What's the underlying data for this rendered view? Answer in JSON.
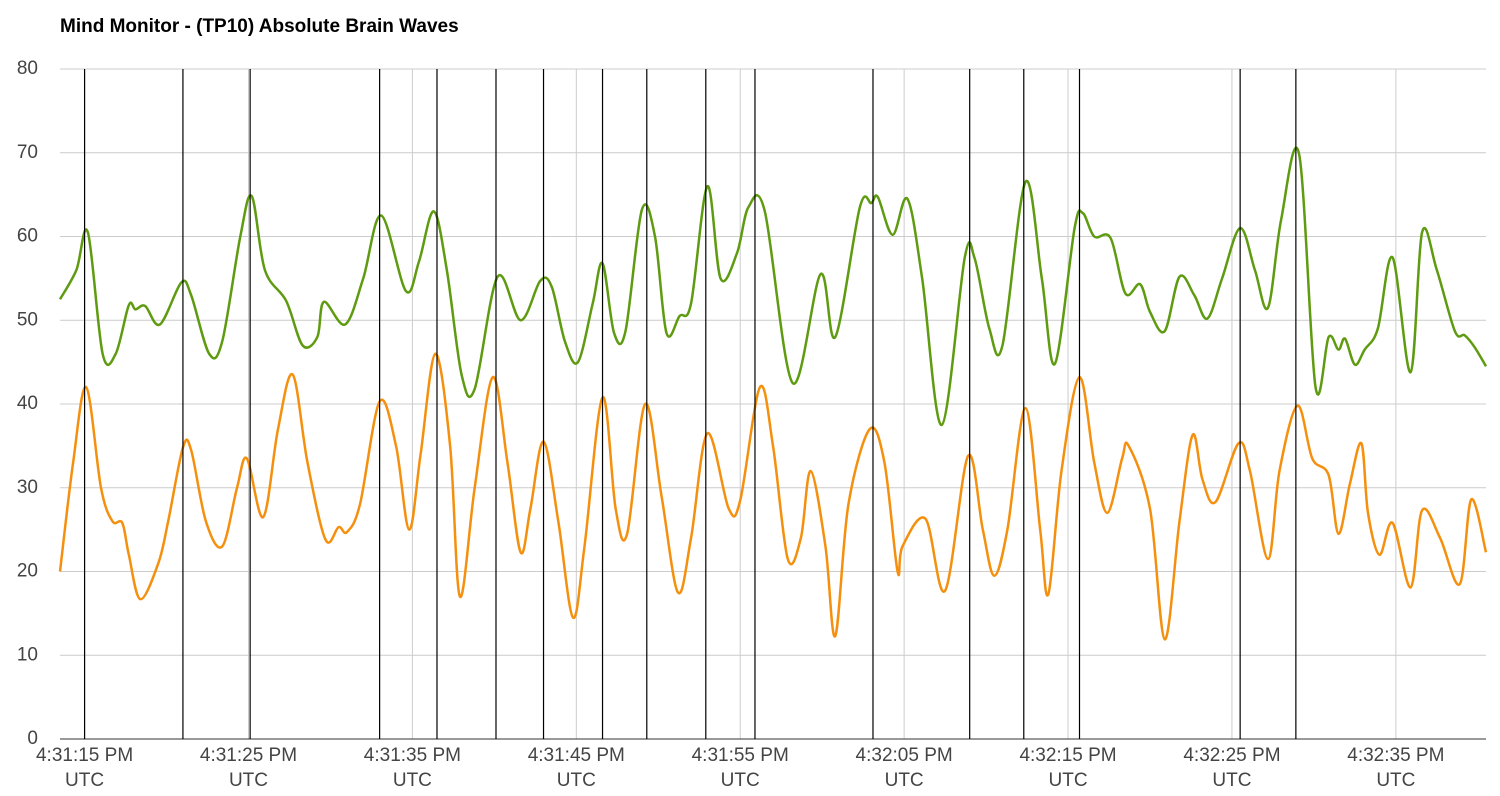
{
  "chart_data": {
    "type": "line",
    "title": "Mind Monitor - (TP10) Absolute Brain Waves",
    "xlim": [
      59473.5,
      59560.5
    ],
    "xticks": [
      {
        "value": 59475,
        "label": "4:31:15 PM UTC"
      },
      {
        "value": 59485,
        "label": "4:31:25 PM UTC"
      },
      {
        "value": 59495,
        "label": "4:31:35 PM UTC"
      },
      {
        "value": 59505,
        "label": "4:31:45 PM UTC"
      },
      {
        "value": 59515,
        "label": "4:31:55 PM UTC"
      },
      {
        "value": 59525,
        "label": "4:32:05 PM UTC"
      },
      {
        "value": 59535,
        "label": "4:32:15 PM UTC"
      },
      {
        "value": 59545,
        "label": "4:32:25 PM UTC"
      },
      {
        "value": 59555,
        "label": "4:32:35 PM UTC"
      }
    ],
    "ylim": [
      0,
      80
    ],
    "yticks": [
      0,
      10,
      20,
      30,
      40,
      50,
      60,
      70,
      80
    ],
    "grid": true,
    "markers": [
      59475.0,
      59481.0,
      59485.1,
      59493.0,
      59496.5,
      59500.1,
      59503.0,
      59506.6,
      59509.3,
      59512.9,
      59515.9,
      59523.1,
      59529.0,
      59532.3,
      59535.7,
      59545.5,
      59548.9
    ],
    "marker_color": "#000000",
    "series": [
      {
        "color": "#5f9b10",
        "x": [
          59473.5,
          59474.5,
          59475.2,
          59476.1,
          59476.9,
          59477.7,
          59478.1,
          59478.7,
          59479.6,
          59480.9,
          59481.5,
          59482.6,
          59483.4,
          59484.5,
          59485.2,
          59486.0,
          59487.3,
          59488.3,
          59489.2,
          59489.6,
          59490.9,
          59492.0,
          59493.1,
          59494.6,
          59495.4,
          59496.3,
          59497.1,
          59498.0,
          59498.8,
          59500.2,
          59501.6,
          59502.8,
          59503.5,
          59504.3,
          59505.1,
          59506.0,
          59506.6,
          59507.3,
          59508.0,
          59509.0,
          59509.8,
          59510.5,
          59511.3,
          59512.0,
          59513.0,
          59513.8,
          59514.8,
          59515.5,
          59516.5,
          59518.2,
          59519.9,
          59520.8,
          59522.3,
          59523.0,
          59523.4,
          59524.3,
          59525.2,
          59526.1,
          59527.3,
          59528.7,
          59529.3,
          59530.2,
          59531.0,
          59532.4,
          59533.4,
          59534.2,
          59535.4,
          59535.9,
          59536.6,
          59537.6,
          59538.5,
          59539.4,
          59540.0,
          59540.9,
          59541.8,
          59542.7,
          59543.5,
          59544.4,
          59545.5,
          59546.4,
          59547.2,
          59548.0,
          59549.1,
          59550.1,
          59550.9,
          59551.5,
          59551.9,
          59552.5,
          59553.1,
          59553.9,
          59554.8,
          59555.9,
          59556.6,
          59557.5,
          59558.6,
          59559.2,
          59559.8,
          59560.5
        ],
        "values": [
          52.5,
          56,
          60.5,
          46,
          46,
          51.8,
          51.3,
          51.7,
          49.5,
          54.5,
          53,
          46,
          47.5,
          60,
          64.8,
          56,
          52.3,
          47,
          48,
          52.2,
          49.5,
          55,
          62.5,
          53.5,
          57,
          63,
          56,
          43.5,
          41.8,
          55.2,
          50,
          54.7,
          54,
          47.5,
          45,
          52,
          56.8,
          48.5,
          48.7,
          63.2,
          60,
          48.5,
          50.5,
          52,
          66,
          55,
          58,
          63.5,
          63,
          42.5,
          55.5,
          48,
          63.5,
          64,
          64.7,
          60.2,
          64.5,
          55,
          37.5,
          57.5,
          57.4,
          49,
          47,
          66.5,
          55,
          44.8,
          61,
          62.8,
          60,
          59.8,
          53.2,
          54.3,
          51,
          48.7,
          55.2,
          53,
          50.2,
          55,
          61,
          56,
          51.5,
          62,
          69.8,
          42,
          48,
          46.5,
          47.8,
          44.7,
          46.5,
          49,
          57.5,
          43.8,
          60.5,
          56,
          48.7,
          48.2,
          46.8,
          44.5
        ]
      },
      {
        "color": "#f5900f",
        "x": [
          59473.5,
          59474.3,
          59475.1,
          59476.0,
          59476.7,
          59477.3,
          59477.7,
          59478.4,
          59479.5,
          59480.1,
          59481.0,
          59481.5,
          59482.4,
          59483.4,
          59484.3,
          59484.9,
          59485.9,
          59486.8,
          59487.7,
          59488.6,
          59489.7,
          59490.5,
          59491.0,
          59491.8,
          59493.0,
          59494.0,
          59494.8,
          59495.5,
          59496.4,
          59497.3,
          59497.9,
          59498.8,
          59499.9,
          59500.8,
          59501.6,
          59502.2,
          59503.0,
          59503.9,
          59504.8,
          59505.5,
          59506.6,
          59507.4,
          59508.1,
          59509.2,
          59510.2,
          59511.2,
          59512.0,
          59513.0,
          59514.3,
          59515.0,
          59516.2,
          59517.0,
          59517.9,
          59518.7,
          59519.3,
          59520.2,
          59520.8,
          59521.6,
          59522.9,
          59523.8,
          59524.6,
          59524.9,
          59526.3,
          59527.5,
          59528.9,
          59529.8,
          59530.5,
          59531.3,
          59532.4,
          59533.3,
          59533.8,
          59534.6,
          59535.7,
          59536.6,
          59537.4,
          59538.3,
          59538.7,
          59540.0,
          59540.9,
          59541.8,
          59542.6,
          59543.2,
          59544.0,
          59545.4,
          59546.1,
          59547.2,
          59547.9,
          59549.0,
          59549.9,
          59550.9,
          59551.5,
          59552.2,
          59552.9,
          59553.3,
          59554.0,
          59554.8,
          59555.9,
          59556.6,
          59557.7,
          59558.9,
          59559.6,
          59560.5
        ],
        "values": [
          20,
          33,
          42,
          30,
          26,
          25.8,
          22,
          16.7,
          21,
          26,
          34.8,
          34.5,
          26,
          23,
          30,
          33.5,
          26.5,
          37,
          43.5,
          33,
          23.8,
          25.3,
          24.7,
          28,
          40.3,
          35,
          25,
          34,
          46,
          35,
          17,
          30,
          43.2,
          33,
          22.3,
          27.5,
          35.5,
          26,
          14.5,
          23,
          40.8,
          27.5,
          24.5,
          40,
          29,
          17.5,
          24,
          36.5,
          27.5,
          28.5,
          42,
          35,
          21.5,
          24,
          32,
          23,
          12.3,
          28,
          37,
          33,
          20,
          23,
          26.3,
          17.7,
          33.8,
          25,
          19.5,
          25,
          39.5,
          25,
          17.3,
          32,
          43.2,
          33,
          27,
          33.5,
          35,
          27.5,
          11.9,
          26,
          36.3,
          31,
          28.3,
          35.3,
          32,
          21.5,
          32,
          39.8,
          33.5,
          31.5,
          24.5,
          30.5,
          35.3,
          27,
          22,
          25.8,
          18.1,
          27.3,
          24,
          18.5,
          28.6,
          22.3
        ]
      }
    ]
  }
}
